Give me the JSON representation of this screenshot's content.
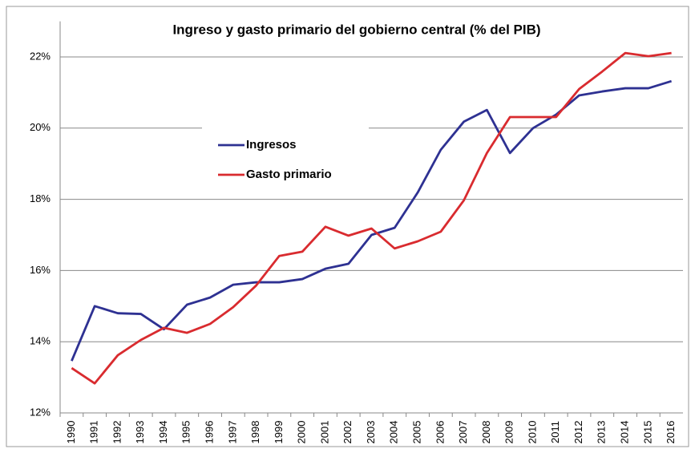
{
  "chart_data": {
    "type": "line",
    "title": "Ingreso y gasto primario del gobierno central (% del PIB)",
    "categories": [
      "1990",
      "1991",
      "1992",
      "1993",
      "1994",
      "1995",
      "1996",
      "1997",
      "1998",
      "1999",
      "2000",
      "2001",
      "2002",
      "2003",
      "2004",
      "2005",
      "2006",
      "2007",
      "2008",
      "2009",
      "2010",
      "2011",
      "2012",
      "2013",
      "2014",
      "2015",
      "2016"
    ],
    "series": [
      {
        "name": "Ingresos",
        "color": "#2e3192",
        "values": [
          13.46,
          15.0,
          14.8,
          14.78,
          14.35,
          15.04,
          15.24,
          15.6,
          15.67,
          15.67,
          15.76,
          16.05,
          16.19,
          17.0,
          17.2,
          18.19,
          19.39,
          20.18,
          20.51,
          19.3,
          20.0,
          20.38,
          20.92,
          21.03,
          21.12,
          21.12,
          21.32
        ]
      },
      {
        "name": "Gasto primario",
        "color": "#d92b2f",
        "values": [
          13.26,
          12.83,
          13.62,
          14.05,
          14.39,
          14.25,
          14.5,
          14.97,
          15.58,
          16.41,
          16.53,
          17.23,
          16.98,
          17.18,
          16.62,
          16.82,
          17.09,
          17.97,
          19.3,
          20.31,
          20.31,
          20.31,
          21.1,
          21.59,
          22.11,
          22.02,
          22.11
        ]
      }
    ],
    "ylim": [
      12,
      23
    ],
    "yticks": [
      {
        "value": 12,
        "label": "12%"
      },
      {
        "value": 14,
        "label": "14%"
      },
      {
        "value": 16,
        "label": "16%"
      },
      {
        "value": 18,
        "label": "18%"
      },
      {
        "value": 20,
        "label": "20%"
      },
      {
        "value": 22,
        "label": "22%"
      }
    ],
    "grid": true
  }
}
